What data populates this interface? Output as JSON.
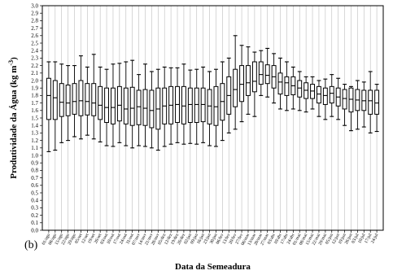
{
  "chart_data": {
    "type": "boxplot",
    "panel_label": "(b)",
    "title": "",
    "xlabel": "Data da Semeadura",
    "ylabel_main": "Produtividade da Água (kg m",
    "ylabel_sup": "-3",
    "ylabel_close": ")",
    "ylim": [
      0.0,
      3.0
    ],
    "y_ticks": [
      "0.0",
      "0.1",
      "0.2",
      "0.3",
      "0.4",
      "0.5",
      "0.6",
      "0.7",
      "0.8",
      "0.9",
      "1.0",
      "1.1",
      "1.2",
      "1.3",
      "1.4",
      "1.5",
      "1.6",
      "1.7",
      "1.8",
      "1.9",
      "2.0",
      "2.1",
      "2.2",
      "2.3",
      "2.4",
      "2.5",
      "2.6",
      "2.7",
      "2.8",
      "2.9",
      "3.0"
    ],
    "grid": {
      "vertical": true,
      "horizontal": false
    },
    "categories": [
      "01/ago",
      "08/ago",
      "15/ago",
      "22/ago",
      "29/ago",
      "05/set",
      "12/set",
      "19/set",
      "26/set",
      "03/out",
      "10/out",
      "17/out",
      "24/out",
      "31/out",
      "07/nov",
      "14/nov",
      "21/nov",
      "28/nov",
      "05/dez",
      "12/dez",
      "19/dez",
      "26/dez",
      "02/jan",
      "09/jan",
      "16/jan",
      "23/jan",
      "30/jan",
      "06/fev",
      "13/fev",
      "20/fev",
      "27/fev",
      "06/mar",
      "13/mar",
      "20/mar",
      "27/mar",
      "03/abr",
      "10/abr",
      "17/abr",
      "24/abr",
      "01/mai",
      "08/mai",
      "15/mai",
      "22/mai",
      "29/mai",
      "05/jun",
      "12/jun",
      "19/jun",
      "26/jun",
      "03/jul",
      "10/jul",
      "17/jul",
      "24/jul"
    ],
    "boxes": [
      {
        "min": 1.05,
        "q1": 1.48,
        "med": 1.8,
        "q3": 2.03,
        "max": 2.25
      },
      {
        "min": 1.07,
        "q1": 1.48,
        "med": 1.77,
        "q3": 2.0,
        "max": 2.25
      },
      {
        "min": 1.17,
        "q1": 1.52,
        "med": 1.71,
        "q3": 1.96,
        "max": 2.22
      },
      {
        "min": 1.2,
        "q1": 1.53,
        "med": 1.7,
        "q3": 1.94,
        "max": 2.2
      },
      {
        "min": 1.25,
        "q1": 1.55,
        "med": 1.72,
        "q3": 1.96,
        "max": 2.2
      },
      {
        "min": 1.22,
        "q1": 1.53,
        "med": 1.73,
        "q3": 2.0,
        "max": 2.33
      },
      {
        "min": 1.27,
        "q1": 1.54,
        "med": 1.72,
        "q3": 1.96,
        "max": 2.18
      },
      {
        "min": 1.22,
        "q1": 1.53,
        "med": 1.7,
        "q3": 1.96,
        "max": 2.35
      },
      {
        "min": 1.18,
        "q1": 1.48,
        "med": 1.67,
        "q3": 1.92,
        "max": 2.18
      },
      {
        "min": 1.13,
        "q1": 1.44,
        "med": 1.64,
        "q3": 1.9,
        "max": 2.15
      },
      {
        "min": 1.12,
        "q1": 1.42,
        "med": 1.64,
        "q3": 1.9,
        "max": 2.22
      },
      {
        "min": 1.17,
        "q1": 1.46,
        "med": 1.67,
        "q3": 1.92,
        "max": 2.23
      },
      {
        "min": 1.13,
        "q1": 1.42,
        "med": 1.62,
        "q3": 1.9,
        "max": 2.25
      },
      {
        "min": 1.1,
        "q1": 1.4,
        "med": 1.63,
        "q3": 1.91,
        "max": 2.27
      },
      {
        "min": 1.13,
        "q1": 1.41,
        "med": 1.65,
        "q3": 1.87,
        "max": 2.08
      },
      {
        "min": 1.12,
        "q1": 1.4,
        "med": 1.63,
        "q3": 1.88,
        "max": 2.22
      },
      {
        "min": 1.1,
        "q1": 1.37,
        "med": 1.6,
        "q3": 1.87,
        "max": 2.12
      },
      {
        "min": 1.07,
        "q1": 1.35,
        "med": 1.62,
        "q3": 1.9,
        "max": 2.15
      },
      {
        "min": 1.12,
        "q1": 1.42,
        "med": 1.66,
        "q3": 1.9,
        "max": 2.18
      },
      {
        "min": 1.15,
        "q1": 1.42,
        "med": 1.67,
        "q3": 1.92,
        "max": 2.17
      },
      {
        "min": 1.17,
        "q1": 1.44,
        "med": 1.68,
        "q3": 1.92,
        "max": 2.17
      },
      {
        "min": 1.15,
        "q1": 1.42,
        "med": 1.66,
        "q3": 1.92,
        "max": 2.22
      },
      {
        "min": 1.16,
        "q1": 1.44,
        "med": 1.68,
        "q3": 1.9,
        "max": 2.14
      },
      {
        "min": 1.15,
        "q1": 1.44,
        "med": 1.68,
        "q3": 1.9,
        "max": 2.15
      },
      {
        "min": 1.17,
        "q1": 1.45,
        "med": 1.68,
        "q3": 1.9,
        "max": 2.18
      },
      {
        "min": 1.13,
        "q1": 1.42,
        "med": 1.66,
        "q3": 1.88,
        "max": 2.12
      },
      {
        "min": 1.12,
        "q1": 1.4,
        "med": 1.65,
        "q3": 1.92,
        "max": 2.15
      },
      {
        "min": 1.2,
        "q1": 1.47,
        "med": 1.72,
        "q3": 1.96,
        "max": 2.25
      },
      {
        "min": 1.3,
        "q1": 1.55,
        "med": 1.8,
        "q3": 2.05,
        "max": 2.3
      },
      {
        "min": 1.35,
        "q1": 1.65,
        "med": 1.88,
        "q3": 2.15,
        "max": 2.6
      },
      {
        "min": 1.45,
        "q1": 1.72,
        "med": 1.95,
        "q3": 2.2,
        "max": 2.47
      },
      {
        "min": 1.55,
        "q1": 1.8,
        "med": 1.97,
        "q3": 2.2,
        "max": 2.45
      },
      {
        "min": 1.52,
        "q1": 1.85,
        "med": 1.99,
        "q3": 2.25,
        "max": 2.38
      },
      {
        "min": 1.8,
        "q1": 1.95,
        "med": 2.08,
        "q3": 2.25,
        "max": 2.4
      },
      {
        "min": 1.78,
        "q1": 1.96,
        "med": 2.07,
        "q3": 2.21,
        "max": 2.43
      },
      {
        "min": 1.7,
        "q1": 1.9,
        "med": 2.05,
        "q3": 2.2,
        "max": 2.36
      },
      {
        "min": 1.62,
        "q1": 1.82,
        "med": 1.98,
        "q3": 2.1,
        "max": 2.3
      },
      {
        "min": 1.6,
        "q1": 1.8,
        "med": 1.97,
        "q3": 2.05,
        "max": 2.25
      },
      {
        "min": 1.62,
        "q1": 1.81,
        "med": 1.93,
        "q3": 2.05,
        "max": 2.18
      },
      {
        "min": 1.6,
        "q1": 1.78,
        "med": 1.9,
        "q3": 2.0,
        "max": 2.12
      },
      {
        "min": 1.58,
        "q1": 1.76,
        "med": 1.87,
        "q3": 1.97,
        "max": 2.05
      },
      {
        "min": 1.62,
        "q1": 1.76,
        "med": 1.86,
        "q3": 1.95,
        "max": 2.05
      },
      {
        "min": 1.52,
        "q1": 1.7,
        "med": 1.82,
        "q3": 1.92,
        "max": 2.0
      },
      {
        "min": 1.48,
        "q1": 1.68,
        "med": 1.8,
        "q3": 1.9,
        "max": 2.02
      },
      {
        "min": 1.52,
        "q1": 1.7,
        "med": 1.83,
        "q3": 1.92,
        "max": 2.08
      },
      {
        "min": 1.48,
        "q1": 1.66,
        "med": 1.78,
        "q3": 1.9,
        "max": 2.03
      },
      {
        "min": 1.4,
        "q1": 1.62,
        "med": 1.76,
        "q3": 1.88,
        "max": 1.95
      },
      {
        "min": 1.33,
        "q1": 1.58,
        "med": 1.75,
        "q3": 1.9,
        "max": 1.92
      },
      {
        "min": 1.35,
        "q1": 1.6,
        "med": 1.74,
        "q3": 1.88,
        "max": 2.0
      },
      {
        "min": 1.38,
        "q1": 1.6,
        "med": 1.73,
        "q3": 1.87,
        "max": 1.98
      },
      {
        "min": 1.3,
        "q1": 1.55,
        "med": 1.73,
        "q3": 1.87,
        "max": 2.12
      },
      {
        "min": 1.32,
        "q1": 1.55,
        "med": 1.7,
        "q3": 1.87,
        "max": 1.95
      }
    ]
  }
}
